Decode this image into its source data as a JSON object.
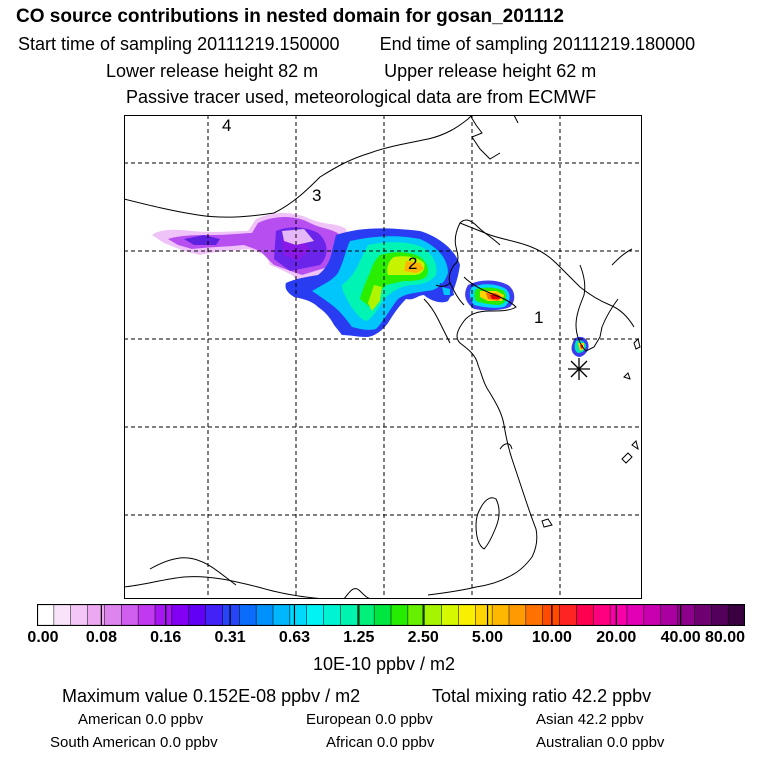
{
  "header": {
    "title": "CO  source contributions in nested domain for gosan_201112",
    "start_label": "Start time of sampling 20111219.150000",
    "end_label": "End time of sampling 20111219.180000",
    "lower_label": "Lower release height   82 m",
    "upper_label": "Upper release height   62 m",
    "tracer_label": "Passive tracer used, meteorological data are from ECMWF"
  },
  "map": {
    "region_labels": [
      "1",
      "2",
      "3",
      "4"
    ],
    "receptor": "gosan"
  },
  "colorbar": {
    "units": "10E-10 ppbv / m2",
    "tick_labels": [
      "0.00",
      "0.08",
      "0.16",
      "0.31",
      "0.63",
      "1.25",
      "2.50",
      "5.00",
      "10.00",
      "20.00",
      "40.00",
      "80.00"
    ],
    "colors": [
      "#ffffff",
      "#f9e3fb",
      "#f3c6f7",
      "#eca8f3",
      "#de84ef",
      "#d05eef",
      "#c23af0",
      "#a616f2",
      "#8300f4",
      "#6200f5",
      "#4322f7",
      "#2844f9",
      "#0a6cfb",
      "#0092fc",
      "#00b6fc",
      "#00d8fc",
      "#00f4f4",
      "#00f4d4",
      "#00f4b0",
      "#00f07a",
      "#00e640",
      "#26ec00",
      "#66f000",
      "#a6f400",
      "#d6f800",
      "#f8f000",
      "#ffd400",
      "#ffb800",
      "#ff9a00",
      "#ff7200",
      "#ff4a00",
      "#ff2424",
      "#ff0050",
      "#ff0080",
      "#f800a8",
      "#e200b6",
      "#c800b0",
      "#aa00a0",
      "#8c008c",
      "#6e0072",
      "#52005a",
      "#3a0040"
    ]
  },
  "stats": {
    "max_label": "Maximum value  0.152E-08 ppbv / m2",
    "total_label": "Total mixing ratio       42.2 ppbv",
    "american": "American          0.0 ppbv",
    "european": "European          0.0 ppbv",
    "asian": "Asian          42.2 ppbv",
    "south_american": "South American          0.0 ppbv",
    "african": "African          0.0 ppbv",
    "australian": "Australian          0.0 ppbv"
  }
}
